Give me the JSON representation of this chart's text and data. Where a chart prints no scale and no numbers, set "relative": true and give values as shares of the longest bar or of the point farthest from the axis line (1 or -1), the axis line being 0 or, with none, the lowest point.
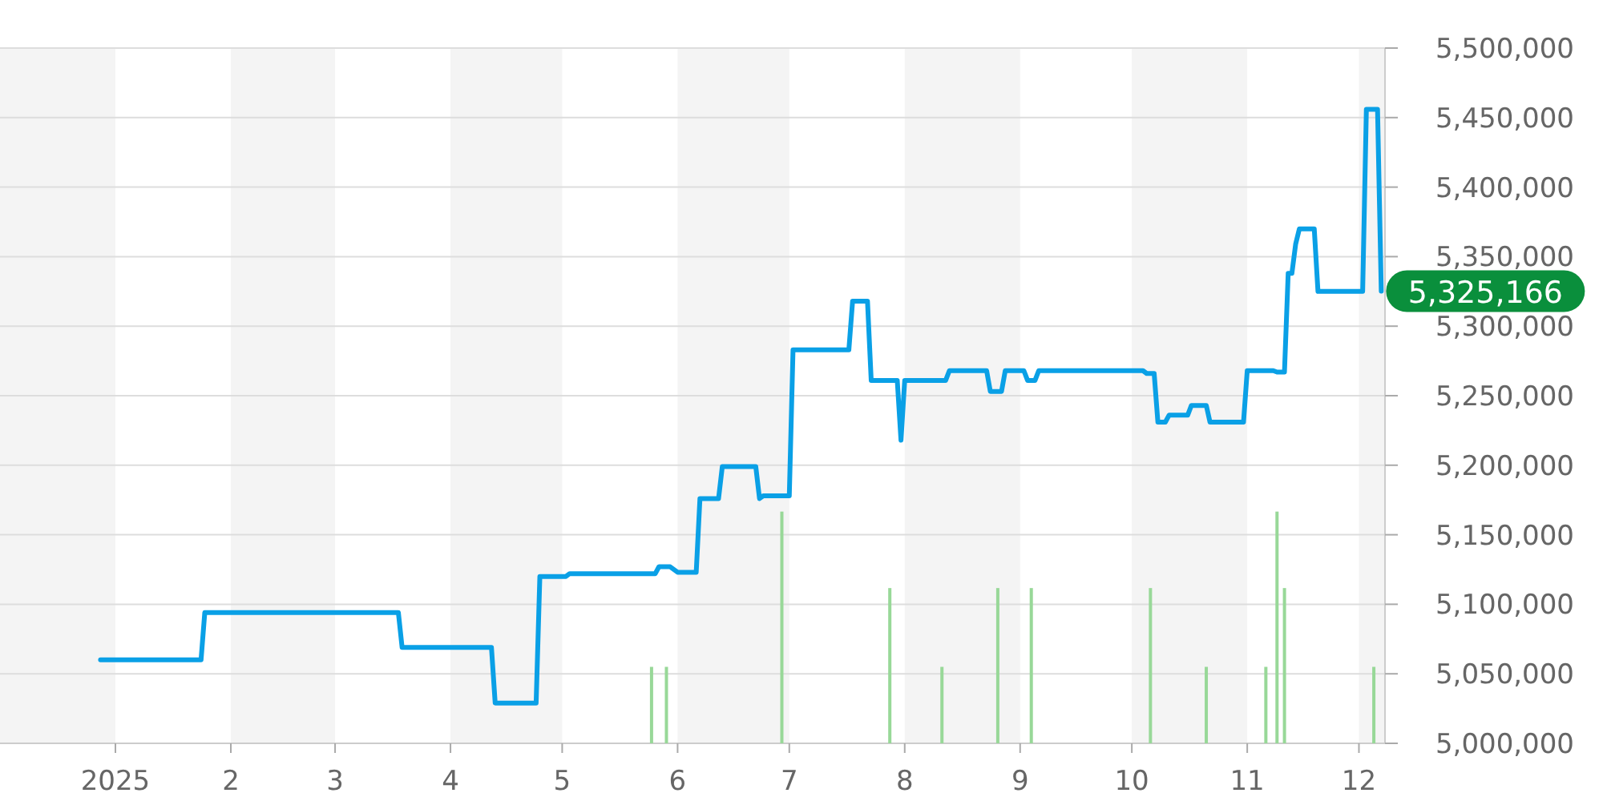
{
  "chart_data": [
    {
      "type": "line",
      "x": [
        "2024-12-28",
        "2025-01-24",
        "2025-01-25",
        "2025-03-18",
        "2025-03-19",
        "2025-04-12",
        "2025-04-13",
        "2025-04-24",
        "2025-04-25",
        "2025-05-02",
        "2025-05-03",
        "2025-05-26",
        "2025-05-27",
        "2025-05-30",
        "2025-06-01",
        "2025-06-06",
        "2025-06-07",
        "2025-06-12",
        "2025-06-13",
        "2025-06-22",
        "2025-06-23",
        "2025-06-24",
        "2025-07-01",
        "2025-07-02",
        "2025-07-17",
        "2025-07-18",
        "2025-07-22",
        "2025-07-23",
        "2025-07-30",
        "2025-07-31",
        "2025-08-01",
        "2025-08-12",
        "2025-08-13",
        "2025-08-23",
        "2025-08-24",
        "2025-08-27",
        "2025-08-28",
        "2025-09-02",
        "2025-09-03",
        "2025-09-05",
        "2025-09-06",
        "2025-10-04",
        "2025-10-05",
        "2025-10-07",
        "2025-10-08",
        "2025-10-10",
        "2025-10-11",
        "2025-10-16",
        "2025-10-17",
        "2025-10-21",
        "2025-10-22",
        "2025-10-31",
        "2025-11-01",
        "2025-11-08",
        "2025-11-09",
        "2025-11-11",
        "2025-11-12",
        "2025-11-13",
        "2025-11-14",
        "2025-11-15",
        "2025-11-19",
        "2025-11-20",
        "2025-12-02",
        "2025-12-03",
        "2025-12-06",
        "2025-12-07"
      ],
      "series": [
        {
          "color": "#0aa0e6",
          "values": [
            5060000,
            5060000,
            5094000,
            5094000,
            5069000,
            5069000,
            5029000,
            5029000,
            5120000,
            5120000,
            5122000,
            5122000,
            5127000,
            5127000,
            5123000,
            5123000,
            5176000,
            5176000,
            5199000,
            5199000,
            5176000,
            5178000,
            5178000,
            5283000,
            5283000,
            5318000,
            5318000,
            5261000,
            5261000,
            5218000,
            5261000,
            5261000,
            5268000,
            5268000,
            5253000,
            5253000,
            5268000,
            5268000,
            5261000,
            5261000,
            5268000,
            5268000,
            5266000,
            5266000,
            5231000,
            5231000,
            5236000,
            5236000,
            5243000,
            5243000,
            5231000,
            5231000,
            5268000,
            5268000,
            5267000,
            5267000,
            5338000,
            5338000,
            5359000,
            5370000,
            5370000,
            5325000,
            5325000,
            5456000,
            5456000,
            5325166
          ]
        }
      ],
      "xlim": [
        "2024-12-01",
        "2025-12-08"
      ],
      "xticks": [
        {
          "value": "2025-01-01",
          "label": "2025"
        },
        {
          "value": "2025-02-01",
          "label": "2"
        },
        {
          "value": "2025-03-01",
          "label": "3"
        },
        {
          "value": "2025-04-01",
          "label": "4"
        },
        {
          "value": "2025-05-01",
          "label": "5"
        },
        {
          "value": "2025-06-01",
          "label": "6"
        },
        {
          "value": "2025-07-01",
          "label": "7"
        },
        {
          "value": "2025-08-01",
          "label": "8"
        },
        {
          "value": "2025-09-01",
          "label": "9"
        },
        {
          "value": "2025-10-01",
          "label": "10"
        },
        {
          "value": "2025-11-01",
          "label": "11"
        },
        {
          "value": "2025-12-01",
          "label": "12"
        }
      ],
      "ylim": [
        5000000,
        5500000
      ],
      "yticks": [
        {
          "value": 5000000,
          "label": "5,000,000"
        },
        {
          "value": 5050000,
          "label": "5,050,000"
        },
        {
          "value": 5100000,
          "label": "5,100,000"
        },
        {
          "value": 5150000,
          "label": "5,150,000"
        },
        {
          "value": 5200000,
          "label": "5,200,000"
        },
        {
          "value": 5250000,
          "label": "5,250,000"
        },
        {
          "value": 5300000,
          "label": "5,300,000"
        },
        {
          "value": 5350000,
          "label": "5,350,000"
        },
        {
          "value": 5400000,
          "label": "5,400,000"
        },
        {
          "value": 5450000,
          "label": "5,450,000"
        },
        {
          "value": 5500000,
          "label": "5,500,000"
        }
      ],
      "bands": [
        {
          "axis": "x",
          "from": "2024-12-01",
          "to": "2025-01-01",
          "color": "#f4f4f4"
        },
        {
          "axis": "x",
          "from": "2025-02-01",
          "to": "2025-03-01",
          "color": "#f4f4f4"
        },
        {
          "axis": "x",
          "from": "2025-04-01",
          "to": "2025-05-01",
          "color": "#f4f4f4"
        },
        {
          "axis": "x",
          "from": "2025-06-01",
          "to": "2025-07-01",
          "color": "#f4f4f4"
        },
        {
          "axis": "x",
          "from": "2025-08-01",
          "to": "2025-09-01",
          "color": "#f4f4f4"
        },
        {
          "axis": "x",
          "from": "2025-10-01",
          "to": "2025-11-01",
          "color": "#f4f4f4"
        },
        {
          "axis": "x",
          "from": "2025-12-01",
          "to": "2025-12-08",
          "color": "#f4f4f4"
        }
      ],
      "annotations": [
        {
          "text": "5,325,166",
          "x": "2025-12-07",
          "y": 5325166
        }
      ],
      "grid": "y",
      "marker": "none",
      "line_style": "solid"
    },
    {
      "type": "bar",
      "relative": true,
      "x": [
        "2025-05-25",
        "2025-05-29",
        "2025-06-29",
        "2025-07-28",
        "2025-08-11",
        "2025-08-26",
        "2025-09-04",
        "2025-10-06",
        "2025-10-21",
        "2025-11-06",
        "2025-11-09",
        "2025-11-11",
        "2025-12-05"
      ],
      "xlim": [
        "2024-12-01",
        "2025-12-08"
      ],
      "color": "#98d898",
      "values": [
        0.33,
        0.33,
        1,
        0.67,
        0.33,
        0.67,
        0.67,
        0.67,
        0.33,
        0.33,
        1,
        0.67,
        0.33
      ]
    }
  ]
}
